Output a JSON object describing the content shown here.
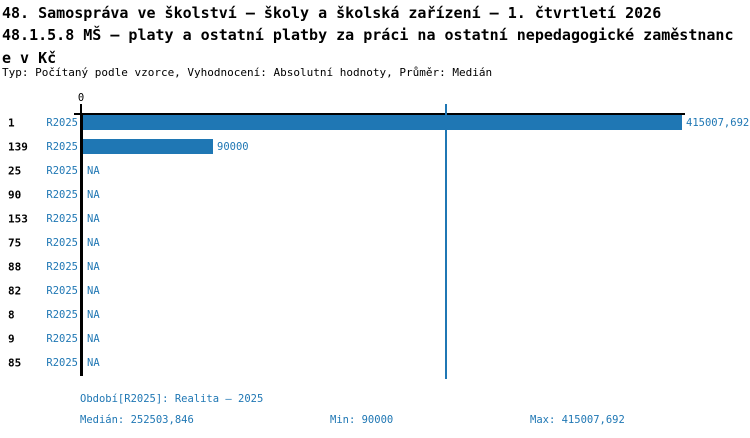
{
  "colors": {
    "accent": "#1f77b4",
    "axis": "#000000",
    "background": "#ffffff"
  },
  "header": {
    "title_line1": "48. Samospráva ve školství – školy a školská zařízení – 1. čtvrtletí 2026",
    "title_line2": "48.1.5.8 MŠ – platy a ostatní platby za práci na ostatní nepedagogické zaměstnanc",
    "title_line3": "e v Kč",
    "type_line": "Typ: Počítaný podle vzorce, Vyhodnocení: Absolutní hodnoty, Průměr: Medián"
  },
  "chart_data": {
    "type": "bar",
    "orientation": "horizontal",
    "title": "48. Samospráva ve školství – školy a školská zařízení – 1. čtvrtletí 2026",
    "subtitle": "48.1.5.8 MŠ – platy a ostatní platby za práci na ostatní nepedagogické zaměstnance v Kč",
    "series_name": "R2025",
    "categories": [
      "1",
      "139",
      "25",
      "90",
      "153",
      "75",
      "88",
      "82",
      "8",
      "9",
      "85"
    ],
    "values": [
      415007.692,
      90000,
      null,
      null,
      null,
      null,
      null,
      null,
      null,
      null,
      null
    ],
    "value_labels": [
      "415007,692",
      "90000",
      "NA",
      "NA",
      "NA",
      "NA",
      "NA",
      "NA",
      "NA",
      "NA",
      "NA"
    ],
    "na_text": "NA",
    "axis_origin_label": "0",
    "xlim": [
      0,
      415007.692
    ],
    "median_value": 252503.846,
    "min": 90000,
    "max": 415007.692,
    "grid": false,
    "legend": "none",
    "bar_color": "#1f77b4"
  },
  "footer": {
    "period_label": "Období[R2025]: Realita – 2025",
    "median_label": "Medián: 252503,846",
    "min_label": "Min: 90000",
    "max_label": "Max: 415007,692"
  }
}
